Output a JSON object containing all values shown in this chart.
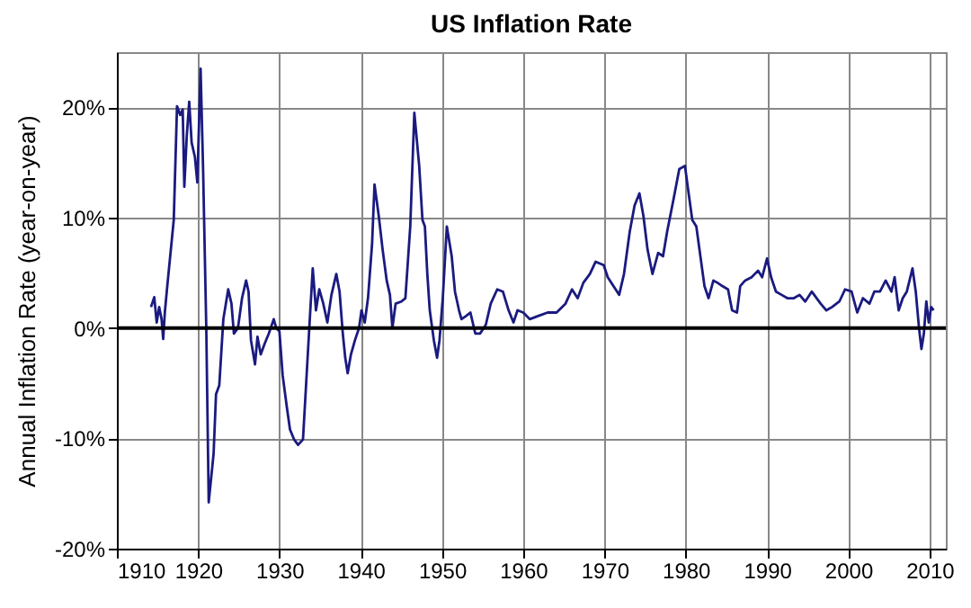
{
  "chart_data": {
    "type": "line",
    "title": "US Inflation Rate",
    "ylabel": "Annual Inflation Rate (year-on-year)",
    "xlim": [
      1910,
      2012
    ],
    "xticks": [
      1910,
      1920,
      1930,
      1940,
      1950,
      1960,
      1970,
      1980,
      1990,
      2000,
      2010
    ],
    "ylim": [
      -20,
      25
    ],
    "yticks": [
      {
        "value": -20,
        "label": "-20%"
      },
      {
        "value": -10,
        "label": "-10%"
      },
      {
        "value": 0,
        "label": "0%"
      },
      {
        "value": 10,
        "label": "10%"
      },
      {
        "value": 20,
        "label": "20%"
      }
    ],
    "grid": true,
    "ref_lines": [
      {
        "axis": "y",
        "value": 0,
        "color": "#000000"
      }
    ],
    "series": [
      {
        "color": "#1a1a80",
        "x": [
          1914.2,
          1914.6,
          1914.9,
          1915.2,
          1915.5,
          1915.7,
          1915.9,
          1916.2,
          1917.0,
          1917.4,
          1917.8,
          1918.1,
          1918.3,
          1918.6,
          1918.9,
          1919.2,
          1919.6,
          1919.9,
          1920.3,
          1920.6,
          1921.0,
          1921.3,
          1921.9,
          1922.2,
          1922.6,
          1923.1,
          1923.7,
          1924.1,
          1924.4,
          1924.9,
          1925.4,
          1925.9,
          1926.2,
          1926.5,
          1927.0,
          1927.3,
          1927.7,
          1928.2,
          1928.7,
          1929.3,
          1929.6,
          1930.0,
          1930.4,
          1930.9,
          1931.3,
          1931.8,
          1932.3,
          1932.9,
          1933.3,
          1933.8,
          1934.1,
          1934.5,
          1934.9,
          1935.4,
          1935.9,
          1936.4,
          1937.0,
          1937.4,
          1937.8,
          1938.1,
          1938.4,
          1938.8,
          1939.3,
          1939.8,
          1940.1,
          1940.5,
          1940.9,
          1941.4,
          1941.7,
          1942.2,
          1942.7,
          1943.2,
          1943.6,
          1943.9,
          1944.3,
          1945.0,
          1945.5,
          1946.1,
          1946.6,
          1947.2,
          1947.6,
          1947.9,
          1948.2,
          1948.5,
          1949.0,
          1949.4,
          1949.7,
          1950.1,
          1950.6,
          1951.2,
          1951.6,
          1952.1,
          1952.4,
          1953.0,
          1953.5,
          1954.1,
          1954.7,
          1955.4,
          1956.0,
          1956.8,
          1957.5,
          1958.2,
          1958.8,
          1959.3,
          1960.0,
          1960.8,
          1961.9,
          1963.0,
          1964.1,
          1965.2,
          1966.0,
          1966.7,
          1967.4,
          1968.2,
          1968.9,
          1969.9,
          1970.4,
          1971.1,
          1971.8,
          1972.4,
          1973.1,
          1973.7,
          1974.3,
          1974.8,
          1975.3,
          1975.9,
          1976.6,
          1977.2,
          1977.7,
          1978.5,
          1979.2,
          1979.9,
          1980.3,
          1980.8,
          1981.3,
          1981.8,
          1982.3,
          1982.8,
          1983.4,
          1983.9,
          1984.5,
          1985.2,
          1985.7,
          1986.3,
          1986.7,
          1987.3,
          1988.1,
          1988.9,
          1989.4,
          1990.0,
          1990.5,
          1991.1,
          1991.8,
          1992.5,
          1993.3,
          1994.0,
          1994.7,
          1995.5,
          1996.6,
          1997.3,
          1998.0,
          1998.9,
          1999.6,
          2000.4,
          2001.1,
          2001.8,
          2002.6,
          2003.2,
          2003.9,
          2004.6,
          2005.3,
          2005.7,
          2006.2,
          2006.7,
          2007.2,
          2007.9,
          2008.3,
          2008.7,
          2009.0,
          2009.3,
          2009.6,
          2009.9,
          2010.2,
          2010.5
        ],
        "values": [
          1.9,
          2.8,
          0.5,
          1.9,
          0.8,
          -1.0,
          1.4,
          3.8,
          9.8,
          20.1,
          19.3,
          19.8,
          12.8,
          17.4,
          20.5,
          16.8,
          15.5,
          13.2,
          23.5,
          14.7,
          0,
          -15.8,
          -11.4,
          -6.0,
          -5.2,
          0.8,
          3.5,
          2.2,
          -0.5,
          0,
          2.7,
          4.3,
          3.3,
          -1.1,
          -3.3,
          -0.8,
          -2.4,
          -1.4,
          -0.5,
          0.8,
          0,
          -0.3,
          -4.3,
          -7.1,
          -9.2,
          -10.1,
          -10.6,
          -10.1,
          -4.9,
          1.6,
          5.4,
          1.6,
          3.5,
          2.2,
          0.5,
          3.0,
          4.9,
          3.3,
          -0.5,
          -2.7,
          -4.1,
          -2.4,
          -1.1,
          0,
          1.6,
          0.5,
          2.7,
          7.6,
          13.0,
          10.3,
          7.1,
          4.3,
          3.0,
          0,
          2.2,
          2.4,
          2.7,
          9.2,
          19.5,
          14.7,
          9.8,
          9.2,
          4.9,
          1.6,
          -1.1,
          -2.7,
          -1.1,
          2.7,
          9.2,
          6.5,
          3.3,
          1.6,
          0.8,
          1.1,
          1.4,
          -0.5,
          -0.5,
          0.3,
          2.2,
          3.5,
          3.3,
          1.6,
          0.5,
          1.6,
          1.4,
          0.8,
          1.1,
          1.4,
          1.4,
          2.2,
          3.5,
          2.7,
          4.1,
          4.9,
          6.0,
          5.7,
          4.6,
          3.8,
          3.0,
          4.9,
          8.7,
          11.1,
          12.2,
          10.1,
          7.1,
          4.9,
          6.8,
          6.5,
          8.7,
          11.7,
          14.4,
          14.7,
          12.5,
          9.8,
          9.2,
          6.5,
          3.8,
          2.7,
          4.3,
          4.1,
          3.8,
          3.5,
          1.6,
          1.4,
          3.8,
          4.3,
          4.6,
          5.2,
          4.6,
          6.3,
          4.6,
          3.3,
          3.0,
          2.7,
          2.7,
          3.0,
          2.4,
          3.3,
          2.2,
          1.6,
          1.9,
          2.4,
          3.5,
          3.3,
          1.4,
          2.7,
          2.2,
          3.3,
          3.3,
          4.3,
          3.3,
          4.6,
          1.6,
          2.7,
          3.3,
          5.4,
          3.3,
          0,
          -1.9,
          -0.5,
          2.4,
          0.5,
          1.9,
          1.6
        ]
      }
    ]
  }
}
